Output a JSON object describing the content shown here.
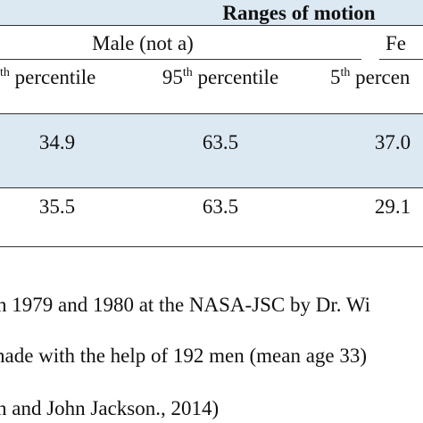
{
  "header": {
    "title": "Ranges of motion",
    "groups": [
      "Male (not a)",
      "Fe"
    ],
    "columns": [
      {
        "sup": "th",
        "text": "percentile"
      },
      {
        "num": "95",
        "sup": "th",
        "text": "percentile"
      },
      {
        "num": "5",
        "sup": "th",
        "text": "percen"
      }
    ]
  },
  "table": {
    "rows": [
      [
        "34.9",
        "63.5",
        "37.0"
      ],
      [
        "35.5",
        "63.5",
        "29.1"
      ]
    ]
  },
  "footnotes": [
    "n 1979 and 1980 at the NASA-JSC by Dr. Wi",
    "nade with the help of 192 men (mean age 33)",
    "n and John Jackson., 2014)"
  ]
}
